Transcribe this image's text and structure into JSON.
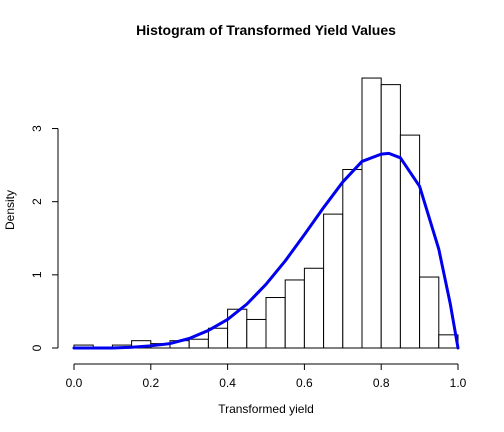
{
  "chart_data": {
    "type": "bar",
    "title": "Histogram of Transformed Yield Values",
    "xlabel": "Transformed yield",
    "ylabel": "Density",
    "xlim": [
      0,
      1
    ],
    "ylim": [
      0,
      3.8
    ],
    "x_ticks": [
      "0.0",
      "0.2",
      "0.4",
      "0.6",
      "0.8",
      "1.0"
    ],
    "y_ticks": [
      "0",
      "1",
      "2",
      "3"
    ],
    "grid": false,
    "bins": {
      "edges": [
        0.0,
        0.05,
        0.1,
        0.15,
        0.2,
        0.25,
        0.3,
        0.35,
        0.4,
        0.45,
        0.5,
        0.55,
        0.6,
        0.65,
        0.7,
        0.75,
        0.8,
        0.85,
        0.9,
        0.95,
        1.0
      ],
      "values": [
        0.04,
        0.0,
        0.04,
        0.1,
        0.06,
        0.1,
        0.12,
        0.27,
        0.53,
        0.39,
        0.69,
        0.93,
        1.09,
        1.83,
        2.44,
        3.69,
        3.6,
        2.91,
        0.97,
        0.18
      ]
    },
    "overlay_curve": {
      "type": "line",
      "color": "#0000ee",
      "x": [
        0.0,
        0.05,
        0.1,
        0.15,
        0.2,
        0.25,
        0.3,
        0.35,
        0.4,
        0.45,
        0.5,
        0.55,
        0.6,
        0.65,
        0.7,
        0.75,
        0.8,
        0.82,
        0.85,
        0.9,
        0.95,
        0.98,
        1.0
      ],
      "y": [
        0.0,
        0.0,
        0.0,
        0.01,
        0.03,
        0.06,
        0.13,
        0.24,
        0.39,
        0.6,
        0.87,
        1.19,
        1.55,
        1.92,
        2.27,
        2.55,
        2.65,
        2.66,
        2.6,
        2.21,
        1.35,
        0.6,
        0.0
      ]
    }
  }
}
